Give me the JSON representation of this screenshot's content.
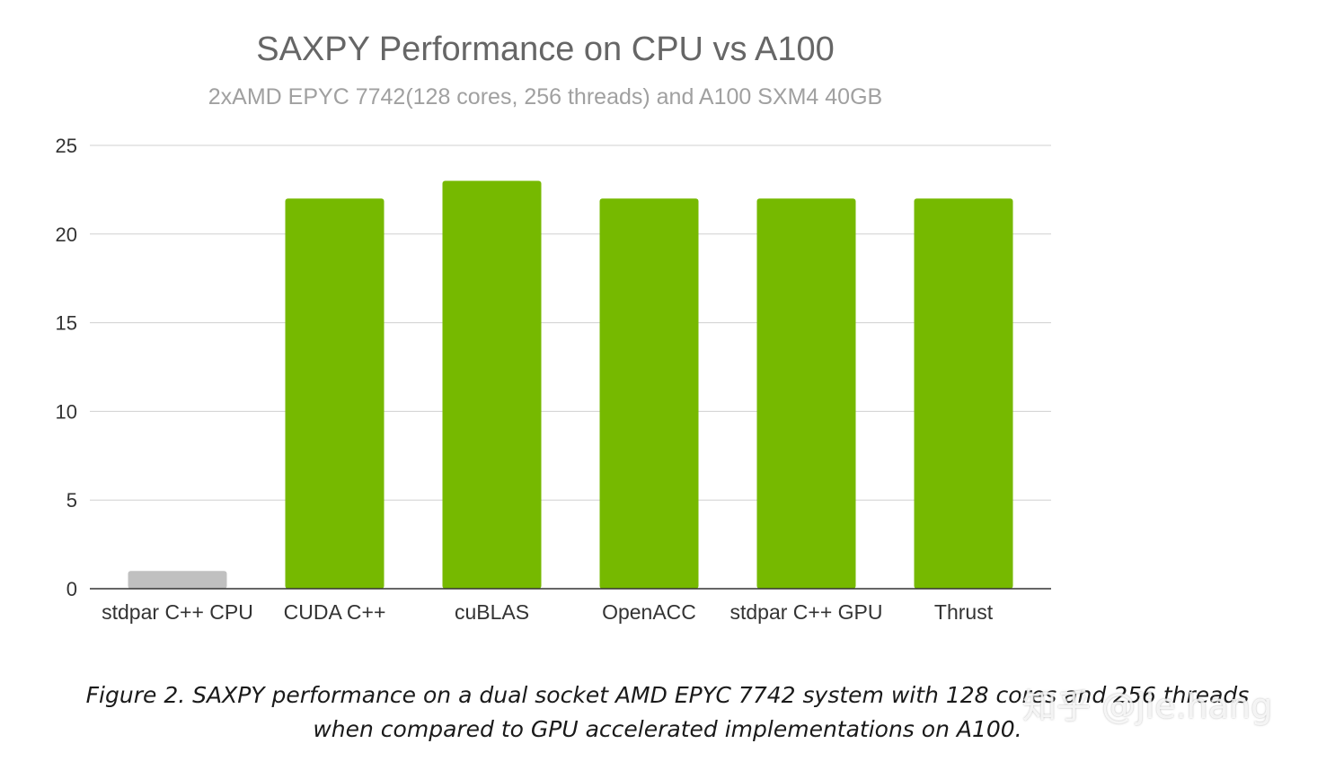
{
  "chart_data": {
    "type": "bar",
    "title": "SAXPY Performance on CPU vs A100",
    "subtitle": "2xAMD EPYC 7742(128 cores, 256 threads) and A100 SXM4 40GB",
    "categories": [
      "stdpar C++ CPU",
      "CUDA C++",
      "cuBLAS",
      "OpenACC",
      "stdpar C++ GPU",
      "Thrust"
    ],
    "values": [
      1,
      22,
      23,
      22,
      22,
      22
    ],
    "bar_colors": [
      "#c0c0c0",
      "#76b900",
      "#76b900",
      "#76b900",
      "#76b900",
      "#76b900"
    ],
    "y_ticks": [
      0,
      5,
      10,
      15,
      20,
      25
    ],
    "ylim": [
      0,
      25
    ],
    "xlabel": "",
    "ylabel": "",
    "grid": true,
    "legend": "none"
  },
  "caption": {
    "line1": "Figure 2. SAXPY performance on a dual socket AMD EPYC 7742 system with 128 cores and 256 threads",
    "line2": "when compared to GPU accelerated implementations on A100."
  },
  "watermark": {
    "text": "知乎 @jie.hang"
  },
  "colors": {
    "gpu_bar": "#76b900",
    "cpu_bar": "#c0c0c0"
  }
}
